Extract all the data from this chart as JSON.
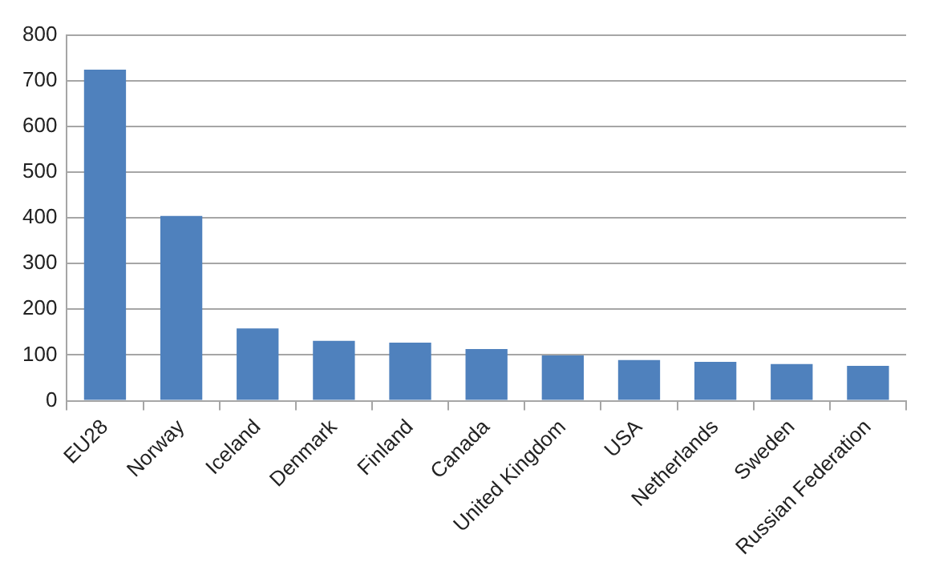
{
  "chart_data": {
    "type": "bar",
    "categories": [
      "EU28",
      "Norway",
      "Iceland",
      "Denmark",
      "Finland",
      "Canada",
      "United Kingdom",
      "USA",
      "Netherlands",
      "Sweden",
      "Russian Federation"
    ],
    "values": [
      724,
      404,
      158,
      131,
      127,
      113,
      99,
      89,
      85,
      80,
      76
    ],
    "color": "#4f81bd",
    "ylim": [
      0,
      800
    ],
    "yticks": [
      0,
      100,
      200,
      300,
      400,
      500,
      600,
      700,
      800
    ],
    "grid": "y",
    "legend": false
  }
}
